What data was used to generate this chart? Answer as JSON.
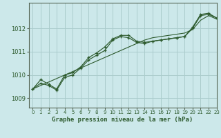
{
  "title": "Graphe pression niveau de la mer (hPa)",
  "background_color": "#cce8ea",
  "grid_color": "#aacccc",
  "line_color": "#2d5a2d",
  "xlim": [
    -0.5,
    23
  ],
  "ylim": [
    1008.6,
    1013.1
  ],
  "yticks": [
    1009,
    1010,
    1011,
    1012
  ],
  "xticks": [
    0,
    1,
    2,
    3,
    4,
    5,
    6,
    7,
    8,
    9,
    10,
    11,
    12,
    13,
    14,
    15,
    16,
    17,
    18,
    19,
    20,
    21,
    22,
    23
  ],
  "series_main": [
    1009.4,
    1009.8,
    1009.6,
    1009.4,
    1010.0,
    1010.1,
    1010.35,
    1010.75,
    1010.95,
    1011.2,
    1011.55,
    1011.7,
    1011.7,
    1011.45,
    1011.4,
    1011.45,
    1011.5,
    1011.55,
    1011.6,
    1011.65,
    1012.05,
    1012.6,
    1012.65,
    1012.45
  ],
  "series_linear": [
    1009.4,
    1009.55,
    1009.7,
    1009.85,
    1010.0,
    1010.15,
    1010.3,
    1010.45,
    1010.6,
    1010.75,
    1010.9,
    1011.05,
    1011.2,
    1011.35,
    1011.5,
    1011.6,
    1011.65,
    1011.7,
    1011.75,
    1011.8,
    1011.95,
    1012.35,
    1012.55,
    1012.4
  ],
  "series_alt": [
    1009.4,
    1009.65,
    1009.55,
    1009.35,
    1009.9,
    1010.0,
    1010.3,
    1010.65,
    1010.85,
    1011.05,
    1011.5,
    1011.65,
    1011.6,
    1011.4,
    1011.35,
    1011.45,
    1011.5,
    1011.55,
    1011.6,
    1011.65,
    1012.0,
    1012.55,
    1012.6,
    1012.45
  ]
}
